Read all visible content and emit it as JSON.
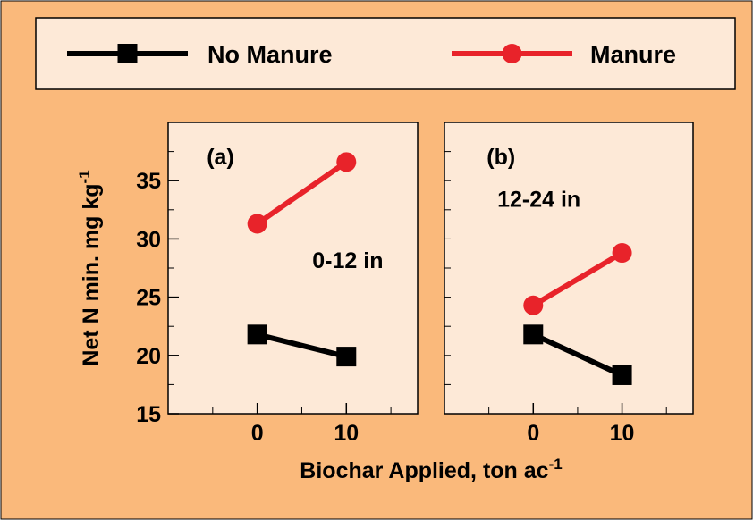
{
  "legend_title": null,
  "x_label": {
    "text": "Biochar Applied, ton ac",
    "sup": "-1"
  },
  "y_label": {
    "text": "Net N min. mg kg",
    "sup": "-1"
  },
  "chart_data": [
    {
      "type": "line",
      "panel": "(a)",
      "annotation": "0-12 in",
      "x": [
        0,
        10
      ],
      "xlim": [
        -10,
        18
      ],
      "xticks": [
        0,
        10
      ],
      "minor_xticks": [
        -5,
        5,
        15
      ],
      "ylim": [
        15,
        40
      ],
      "yticks": [
        15,
        20,
        25,
        30,
        35
      ],
      "minor_yticks": [
        17.5,
        22.5,
        27.5,
        32.5,
        37.5
      ],
      "series": [
        {
          "name": "No Manure",
          "color": "#000000",
          "marker": "square",
          "values": [
            21.8,
            19.9
          ]
        },
        {
          "name": "Manure",
          "color": "#e8232a",
          "marker": "circle",
          "values": [
            31.3,
            36.6
          ]
        }
      ]
    },
    {
      "type": "line",
      "panel": "(b)",
      "annotation": "12-24 in",
      "x": [
        0,
        10
      ],
      "xlim": [
        -10,
        18
      ],
      "xticks": [
        0,
        10
      ],
      "minor_xticks": [
        -5,
        5,
        15
      ],
      "ylim": [
        15,
        40
      ],
      "minor_yticks": [
        17.5,
        20,
        22.5,
        25,
        27.5,
        30,
        32.5,
        35,
        37.5
      ],
      "series": [
        {
          "color": "#000000",
          "marker": "square",
          "values": [
            21.8,
            18.3
          ]
        },
        {
          "color": "#e8232a",
          "marker": "circle",
          "values": [
            24.3,
            28.8
          ]
        }
      ]
    }
  ]
}
